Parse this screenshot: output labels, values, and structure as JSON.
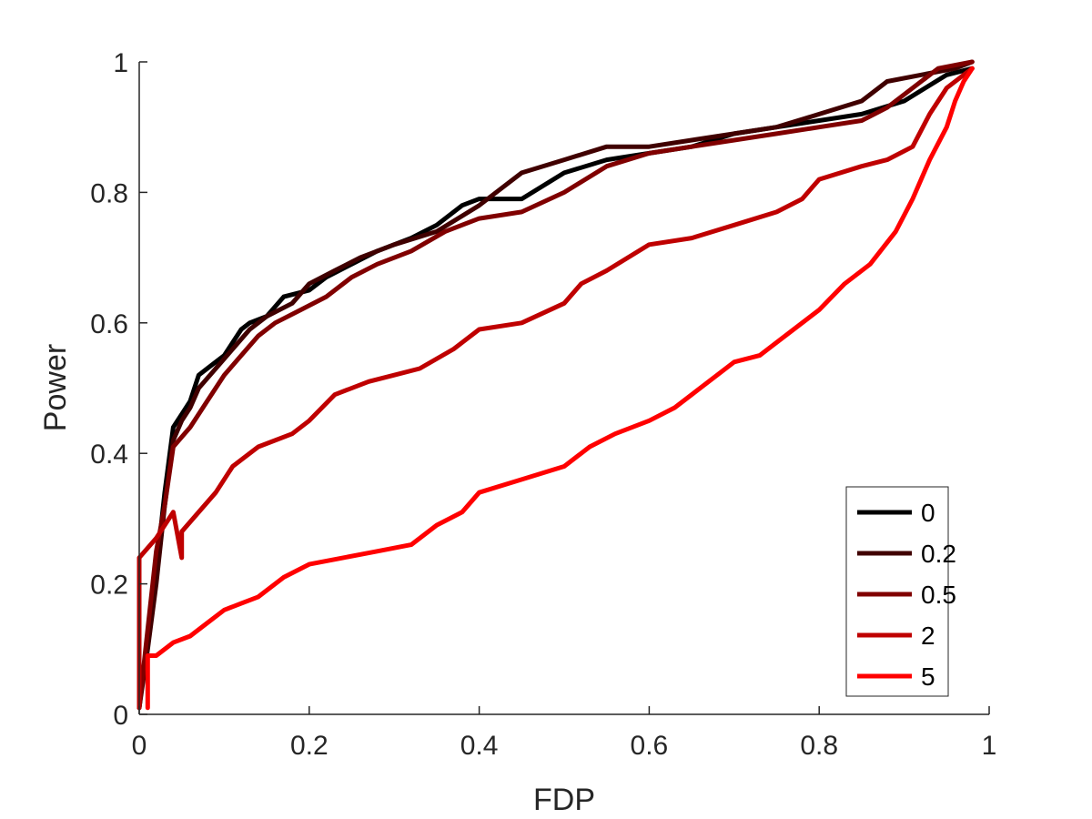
{
  "chart_data": {
    "type": "line",
    "xlabel": "FDP",
    "ylabel": "Power",
    "xlim": [
      0,
      1
    ],
    "ylim": [
      0,
      1
    ],
    "x_ticks": [
      "0",
      "0.2",
      "0.4",
      "0.6",
      "0.8",
      "1"
    ],
    "y_ticks": [
      "0",
      "0.2",
      "0.4",
      "0.6",
      "0.8",
      "1"
    ],
    "grid": false,
    "legend_position": "bottom-right",
    "series": [
      {
        "name": "0",
        "color": "#000000",
        "points": [
          [
            0.0,
            0.01
          ],
          [
            0.01,
            0.12
          ],
          [
            0.02,
            0.22
          ],
          [
            0.03,
            0.34
          ],
          [
            0.04,
            0.44
          ],
          [
            0.05,
            0.46
          ],
          [
            0.06,
            0.48
          ],
          [
            0.07,
            0.52
          ],
          [
            0.08,
            0.53
          ],
          [
            0.1,
            0.55
          ],
          [
            0.12,
            0.59
          ],
          [
            0.13,
            0.6
          ],
          [
            0.15,
            0.61
          ],
          [
            0.17,
            0.64
          ],
          [
            0.2,
            0.65
          ],
          [
            0.22,
            0.67
          ],
          [
            0.25,
            0.69
          ],
          [
            0.28,
            0.71
          ],
          [
            0.32,
            0.73
          ],
          [
            0.35,
            0.75
          ],
          [
            0.38,
            0.78
          ],
          [
            0.4,
            0.79
          ],
          [
            0.45,
            0.79
          ],
          [
            0.5,
            0.83
          ],
          [
            0.55,
            0.85
          ],
          [
            0.6,
            0.86
          ],
          [
            0.65,
            0.87
          ],
          [
            0.7,
            0.89
          ],
          [
            0.75,
            0.9
          ],
          [
            0.8,
            0.91
          ],
          [
            0.85,
            0.92
          ],
          [
            0.9,
            0.94
          ],
          [
            0.95,
            0.98
          ],
          [
            0.98,
            0.99
          ]
        ]
      },
      {
        "name": "0.2",
        "color": "#400000",
        "points": [
          [
            0.0,
            0.01
          ],
          [
            0.01,
            0.1
          ],
          [
            0.02,
            0.2
          ],
          [
            0.03,
            0.32
          ],
          [
            0.04,
            0.42
          ],
          [
            0.05,
            0.45
          ],
          [
            0.06,
            0.47
          ],
          [
            0.07,
            0.5
          ],
          [
            0.09,
            0.53
          ],
          [
            0.11,
            0.56
          ],
          [
            0.13,
            0.59
          ],
          [
            0.15,
            0.61
          ],
          [
            0.18,
            0.63
          ],
          [
            0.2,
            0.66
          ],
          [
            0.23,
            0.68
          ],
          [
            0.26,
            0.7
          ],
          [
            0.3,
            0.72
          ],
          [
            0.35,
            0.74
          ],
          [
            0.4,
            0.78
          ],
          [
            0.45,
            0.83
          ],
          [
            0.5,
            0.85
          ],
          [
            0.55,
            0.87
          ],
          [
            0.6,
            0.87
          ],
          [
            0.65,
            0.88
          ],
          [
            0.7,
            0.89
          ],
          [
            0.75,
            0.9
          ],
          [
            0.8,
            0.92
          ],
          [
            0.85,
            0.94
          ],
          [
            0.88,
            0.97
          ],
          [
            0.92,
            0.98
          ],
          [
            0.96,
            0.99
          ],
          [
            0.98,
            1.0
          ]
        ]
      },
      {
        "name": "0.5",
        "color": "#800000",
        "points": [
          [
            0.0,
            0.01
          ],
          [
            0.01,
            0.13
          ],
          [
            0.02,
            0.25
          ],
          [
            0.03,
            0.32
          ],
          [
            0.04,
            0.41
          ],
          [
            0.06,
            0.44
          ],
          [
            0.08,
            0.48
          ],
          [
            0.1,
            0.52
          ],
          [
            0.12,
            0.55
          ],
          [
            0.14,
            0.58
          ],
          [
            0.16,
            0.6
          ],
          [
            0.19,
            0.62
          ],
          [
            0.22,
            0.64
          ],
          [
            0.25,
            0.67
          ],
          [
            0.28,
            0.69
          ],
          [
            0.32,
            0.71
          ],
          [
            0.36,
            0.74
          ],
          [
            0.4,
            0.76
          ],
          [
            0.45,
            0.77
          ],
          [
            0.5,
            0.8
          ],
          [
            0.55,
            0.84
          ],
          [
            0.6,
            0.86
          ],
          [
            0.65,
            0.87
          ],
          [
            0.7,
            0.88
          ],
          [
            0.75,
            0.89
          ],
          [
            0.8,
            0.9
          ],
          [
            0.85,
            0.91
          ],
          [
            0.88,
            0.93
          ],
          [
            0.91,
            0.96
          ],
          [
            0.94,
            0.99
          ],
          [
            0.98,
            1.0
          ]
        ]
      },
      {
        "name": "2",
        "color": "#BF0000",
        "points": [
          [
            0.0,
            0.01
          ],
          [
            0.0,
            0.24
          ],
          [
            0.02,
            0.27
          ],
          [
            0.04,
            0.31
          ],
          [
            0.05,
            0.24
          ],
          [
            0.05,
            0.28
          ],
          [
            0.07,
            0.31
          ],
          [
            0.09,
            0.34
          ],
          [
            0.11,
            0.38
          ],
          [
            0.14,
            0.41
          ],
          [
            0.18,
            0.43
          ],
          [
            0.2,
            0.45
          ],
          [
            0.23,
            0.49
          ],
          [
            0.27,
            0.51
          ],
          [
            0.3,
            0.52
          ],
          [
            0.33,
            0.53
          ],
          [
            0.37,
            0.56
          ],
          [
            0.4,
            0.59
          ],
          [
            0.45,
            0.6
          ],
          [
            0.5,
            0.63
          ],
          [
            0.52,
            0.66
          ],
          [
            0.55,
            0.68
          ],
          [
            0.6,
            0.72
          ],
          [
            0.65,
            0.73
          ],
          [
            0.7,
            0.75
          ],
          [
            0.75,
            0.77
          ],
          [
            0.78,
            0.79
          ],
          [
            0.8,
            0.82
          ],
          [
            0.85,
            0.84
          ],
          [
            0.88,
            0.85
          ],
          [
            0.91,
            0.87
          ],
          [
            0.93,
            0.92
          ],
          [
            0.95,
            0.96
          ],
          [
            0.97,
            0.98
          ],
          [
            0.98,
            0.99
          ]
        ]
      },
      {
        "name": "5",
        "color": "#FF0000",
        "points": [
          [
            0.01,
            0.01
          ],
          [
            0.01,
            0.09
          ],
          [
            0.02,
            0.09
          ],
          [
            0.04,
            0.11
          ],
          [
            0.06,
            0.12
          ],
          [
            0.08,
            0.14
          ],
          [
            0.1,
            0.16
          ],
          [
            0.12,
            0.17
          ],
          [
            0.14,
            0.18
          ],
          [
            0.17,
            0.21
          ],
          [
            0.2,
            0.23
          ],
          [
            0.24,
            0.24
          ],
          [
            0.28,
            0.25
          ],
          [
            0.32,
            0.26
          ],
          [
            0.35,
            0.29
          ],
          [
            0.38,
            0.31
          ],
          [
            0.4,
            0.34
          ],
          [
            0.45,
            0.36
          ],
          [
            0.5,
            0.38
          ],
          [
            0.53,
            0.41
          ],
          [
            0.56,
            0.43
          ],
          [
            0.6,
            0.45
          ],
          [
            0.63,
            0.47
          ],
          [
            0.66,
            0.5
          ],
          [
            0.7,
            0.54
          ],
          [
            0.73,
            0.55
          ],
          [
            0.76,
            0.58
          ],
          [
            0.8,
            0.62
          ],
          [
            0.83,
            0.66
          ],
          [
            0.86,
            0.69
          ],
          [
            0.89,
            0.74
          ],
          [
            0.91,
            0.79
          ],
          [
            0.93,
            0.85
          ],
          [
            0.95,
            0.9
          ],
          [
            0.96,
            0.94
          ],
          [
            0.97,
            0.97
          ],
          [
            0.98,
            0.99
          ]
        ]
      }
    ]
  }
}
